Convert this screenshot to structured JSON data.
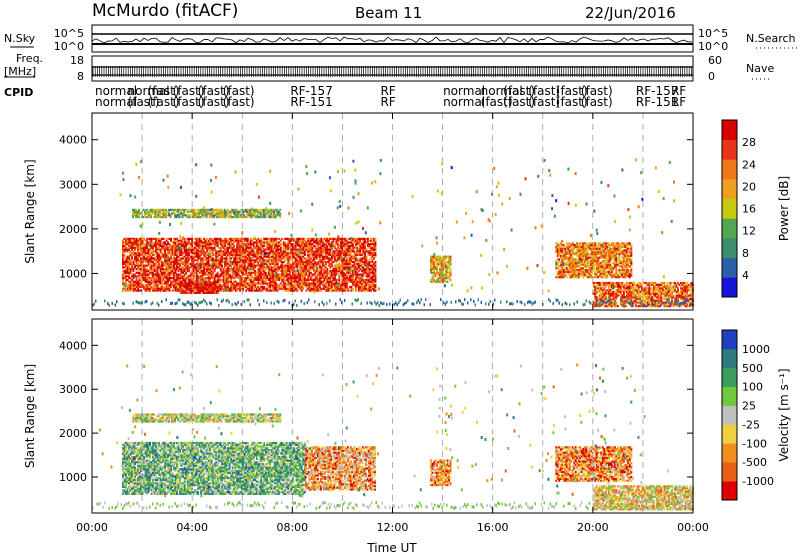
{
  "header": {
    "station": "McMurdo (fitACF)",
    "beam": "Beam 11",
    "date": "22/Jun/2016"
  },
  "strip": {
    "nsky_label": "N.Sky",
    "nsearch_label": "N.Search",
    "freq_label": "Freq.",
    "freq_unit": "[MHz]",
    "nave_label": "Nave",
    "cpid_label": "CPID",
    "log_ticks_left": [
      "10^5",
      "10^0"
    ],
    "log_ticks_right": [
      "10^5",
      "10^0"
    ],
    "freq_ticks": [
      "18",
      "8"
    ],
    "nave_ticks": [
      "60",
      "0"
    ],
    "cpid_row1": [
      "normal",
      "normal",
      "(fast)",
      "(fast)",
      "(fast)",
      "(fast)",
      "RF-157",
      "RF",
      "normal",
      "normal",
      "(fast)",
      "(fast)",
      "(fast)",
      "(fast)",
      "RF-157",
      "RF"
    ],
    "cpid_row2": [
      "normal",
      "(fast)",
      "(fast)",
      "(fast)",
      "(fast)",
      "(fast)",
      "RF-151",
      "RF",
      "normal",
      "(fast)",
      "(fast)",
      "(fast)",
      "(fast)",
      "(fast)",
      "RF-151",
      "RF"
    ]
  },
  "chart_data": [
    {
      "type": "heatmap",
      "name": "power",
      "ylabel": "Slant Range [km]",
      "xlabel": "",
      "x_ticks": [
        "00:00",
        "04:00",
        "08:00",
        "12:00",
        "16:00",
        "20:00",
        "00:00"
      ],
      "xlim_hours": [
        0,
        24
      ],
      "y_ticks": [
        1000,
        2000,
        3000,
        4000
      ],
      "ylim": [
        180,
        4600
      ],
      "colorbar": {
        "label": "Power [dB]",
        "ticks": [
          4,
          8,
          12,
          16,
          20,
          24,
          28
        ],
        "colors": [
          "#1414d8",
          "#2c5fa8",
          "#3c8c6e",
          "#52a84e",
          "#c8cc10",
          "#f0a020",
          "#f07818",
          "#e83418",
          "#d80000"
        ]
      },
      "regions": [
        {
          "t0": 1.2,
          "t1": 11.3,
          "r0": 600,
          "r1": 1800,
          "level": 0.85
        },
        {
          "t0": 1.6,
          "t1": 7.5,
          "r0": 2250,
          "r1": 2450,
          "level": 0.45
        },
        {
          "t0": 3.5,
          "t1": 5.0,
          "r0": 550,
          "r1": 800,
          "level": 0.95
        },
        {
          "t0": 13.5,
          "t1": 14.3,
          "r0": 800,
          "r1": 1400,
          "level": 0.6
        },
        {
          "t0": 18.5,
          "t1": 21.5,
          "r0": 900,
          "r1": 1700,
          "level": 0.7
        },
        {
          "t0": 20.0,
          "t1": 24.0,
          "r0": 250,
          "r1": 800,
          "level": 0.75
        }
      ]
    },
    {
      "type": "heatmap",
      "name": "velocity",
      "ylabel": "Slant Range [km]",
      "xlabel": "Time UT",
      "x_ticks": [
        "00:00",
        "04:00",
        "08:00",
        "12:00",
        "16:00",
        "20:00",
        "00:00"
      ],
      "xlim_hours": [
        0,
        24
      ],
      "y_ticks": [
        1000,
        2000,
        3000,
        4000
      ],
      "ylim": [
        180,
        4600
      ],
      "colorbar": {
        "label": "Velocity [m s⁻¹]",
        "ticks": [
          "1000",
          "500",
          "100",
          "25",
          "-25",
          "-100",
          "-500",
          "-1000"
        ],
        "colors": [
          "#2040c0",
          "#2c7c7c",
          "#3c9c5c",
          "#70c840",
          "#c0c0c0",
          "#f0d040",
          "#f08c20",
          "#e86018",
          "#e00000"
        ]
      },
      "regions": [
        {
          "t0": 1.2,
          "t1": 8.5,
          "r0": 600,
          "r1": 1800,
          "level": 0.35
        },
        {
          "t0": 8.5,
          "t1": 11.3,
          "r0": 700,
          "r1": 1700,
          "level": 0.7
        },
        {
          "t0": 1.6,
          "t1": 7.5,
          "r0": 2250,
          "r1": 2450,
          "level": 0.5
        },
        {
          "t0": 13.5,
          "t1": 14.3,
          "r0": 800,
          "r1": 1400,
          "level": 0.75
        },
        {
          "t0": 18.5,
          "t1": 21.5,
          "r0": 900,
          "r1": 1700,
          "level": 0.75
        },
        {
          "t0": 20.0,
          "t1": 24.0,
          "r0": 250,
          "r1": 800,
          "level": 0.6
        }
      ]
    }
  ]
}
